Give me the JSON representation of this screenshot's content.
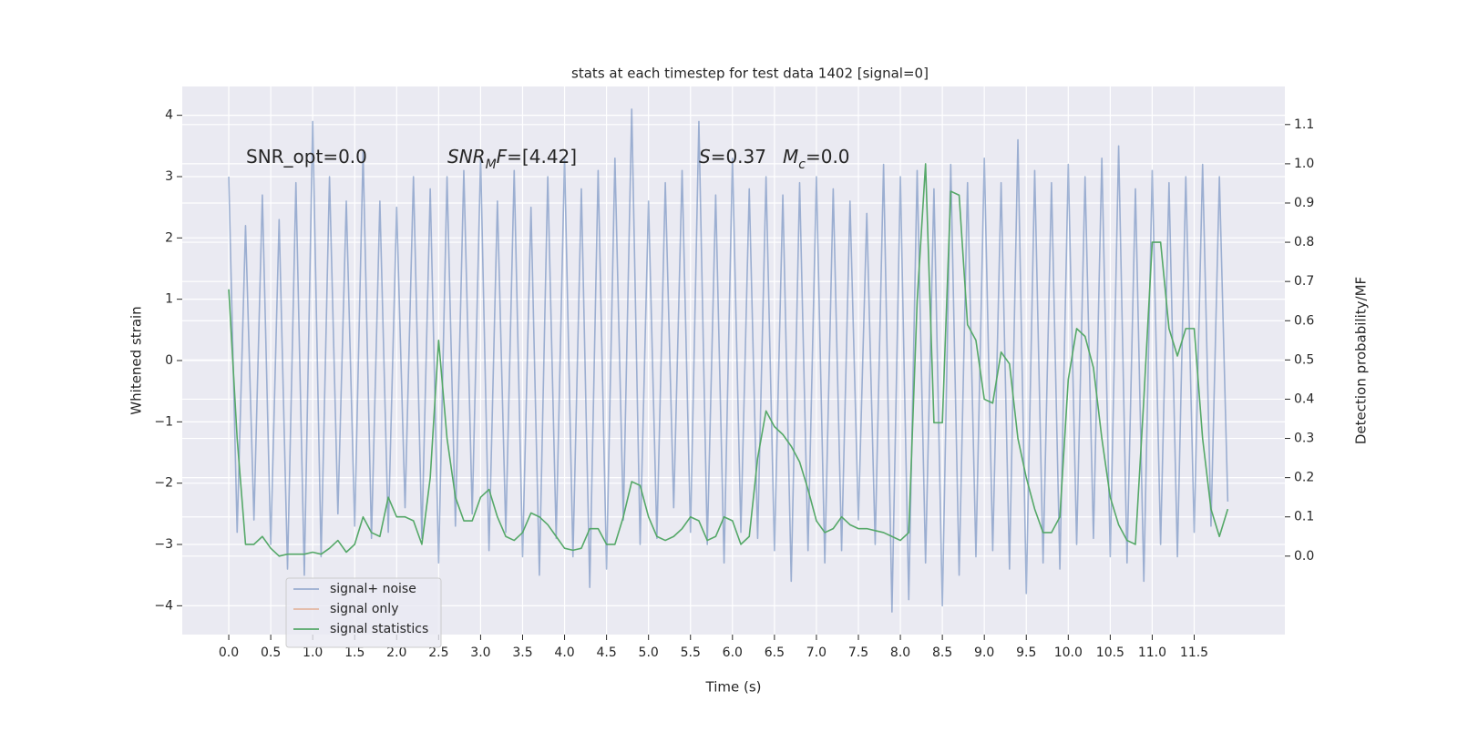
{
  "chart_data": {
    "type": "line",
    "title": "stats at each timestep for test data 1402 [signal=0]",
    "xlabel": "Time (s)",
    "ylabel": "Whitened strain",
    "y2label": "Detection probability/MF",
    "annotations": [
      [
        {
          "text": "SNR_opt=0.0",
          "style": "normal"
        }
      ],
      [
        {
          "text": "SNR",
          "style": "italic"
        },
        {
          "text": "M",
          "style": "sub"
        },
        {
          "text": "F",
          "style": "italic"
        },
        {
          "text": "=[4.42]",
          "style": "normal"
        }
      ],
      [
        {
          "text": "S",
          "style": "italic"
        },
        {
          "text": "=0.37",
          "style": "normal"
        }
      ],
      [
        {
          "text": "M",
          "style": "italic"
        },
        {
          "text": "c",
          "style": "sub"
        },
        {
          "text": "=0.0",
          "style": "normal"
        }
      ]
    ],
    "x": [
      0,
      0.1,
      0.2,
      0.3,
      0.4,
      0.5,
      0.6,
      0.7,
      0.8,
      0.9,
      1,
      1.1,
      1.2,
      1.3,
      1.4,
      1.5,
      1.6,
      1.7,
      1.8,
      1.9,
      2,
      2.1,
      2.2,
      2.3,
      2.4,
      2.5,
      2.6,
      2.7,
      2.8,
      2.9,
      3,
      3.1,
      3.2,
      3.3,
      3.4,
      3.5,
      3.6,
      3.7,
      3.8,
      3.9,
      4,
      4.1,
      4.2,
      4.3,
      4.4,
      4.5,
      4.6,
      4.7,
      4.8,
      4.9,
      5,
      5.1,
      5.2,
      5.3,
      5.4,
      5.5,
      5.6,
      5.7,
      5.8,
      5.9,
      6,
      6.1,
      6.2,
      6.3,
      6.4,
      6.5,
      6.6,
      6.7,
      6.8,
      6.9,
      7,
      7.1,
      7.2,
      7.3,
      7.4,
      7.5,
      7.6,
      7.7,
      7.8,
      7.9,
      8,
      8.1,
      8.2,
      8.3,
      8.4,
      8.5,
      8.6,
      8.7,
      8.8,
      8.9,
      9,
      9.1,
      9.2,
      9.3,
      9.4,
      9.5,
      9.6,
      9.7,
      9.8,
      9.9,
      10,
      10.1,
      10.2,
      10.3,
      10.4,
      10.5,
      10.6,
      10.7,
      10.8,
      10.9,
      11,
      11.1,
      11.2,
      11.3,
      11.4,
      11.5,
      11.6,
      11.7,
      11.8,
      11.9
    ],
    "series": [
      {
        "name": "signal+ noise",
        "color": "#4c72b0",
        "opacity": 0.5,
        "axis": "y",
        "values": [
          3.0,
          -2.8,
          2.2,
          -2.6,
          2.7,
          -3.0,
          2.3,
          -3.4,
          2.9,
          -3.5,
          3.9,
          -3.2,
          3.0,
          -2.5,
          2.6,
          -2.7,
          3.4,
          -2.9,
          2.6,
          -2.8,
          2.5,
          -2.4,
          3.0,
          -2.9,
          2.8,
          -3.3,
          3.0,
          -2.7,
          3.1,
          -2.5,
          3.3,
          -3.1,
          2.6,
          -2.8,
          3.1,
          -3.2,
          2.5,
          -3.5,
          3.0,
          -2.9,
          3.3,
          -3.2,
          2.8,
          -3.7,
          3.1,
          -3.4,
          3.3,
          -2.6,
          4.1,
          -3.0,
          2.6,
          -2.9,
          2.9,
          -2.4,
          3.1,
          -2.8,
          3.9,
          -3.0,
          2.7,
          -3.3,
          3.3,
          -2.8,
          2.8,
          -2.9,
          3.0,
          -3.1,
          2.7,
          -3.6,
          2.9,
          -3.1,
          3.0,
          -3.3,
          2.8,
          -3.1,
          2.6,
          -2.6,
          2.4,
          -3.0,
          3.2,
          -4.1,
          3.0,
          -3.9,
          3.1,
          -3.3,
          2.8,
          -4.0,
          3.2,
          -3.5,
          2.9,
          -3.2,
          3.3,
          -3.1,
          2.9,
          -3.4,
          3.6,
          -3.8,
          3.1,
          -3.3,
          2.9,
          -3.4,
          3.2,
          -3.0,
          3.0,
          -2.9,
          3.3,
          -3.2,
          3.5,
          -3.3,
          2.8,
          -3.6,
          3.1,
          -3.0,
          2.9,
          -3.2,
          3.0,
          -2.8,
          3.2,
          -2.7,
          3.0,
          -2.3
        ]
      },
      {
        "name": "signal only",
        "color": "#dd8452",
        "opacity": 0.5,
        "axis": "y"
      },
      {
        "name": "signal statistics",
        "color": "#55a868",
        "opacity": 1,
        "axis": "y2",
        "values": [
          0.68,
          0.3,
          0.03,
          0.03,
          0.05,
          0.02,
          0.0,
          0.005,
          0.005,
          0.005,
          0.01,
          0.005,
          0.02,
          0.04,
          0.01,
          0.03,
          0.1,
          0.06,
          0.05,
          0.15,
          0.1,
          0.1,
          0.09,
          0.03,
          0.2,
          0.55,
          0.3,
          0.15,
          0.09,
          0.09,
          0.15,
          0.17,
          0.1,
          0.05,
          0.04,
          0.06,
          0.11,
          0.1,
          0.08,
          0.05,
          0.02,
          0.015,
          0.02,
          0.07,
          0.07,
          0.03,
          0.03,
          0.1,
          0.19,
          0.18,
          0.1,
          0.05,
          0.04,
          0.05,
          0.07,
          0.1,
          0.09,
          0.04,
          0.05,
          0.1,
          0.09,
          0.03,
          0.05,
          0.25,
          0.37,
          0.33,
          0.31,
          0.28,
          0.24,
          0.17,
          0.09,
          0.06,
          0.07,
          0.1,
          0.08,
          0.07,
          0.07,
          0.065,
          0.06,
          0.05,
          0.04,
          0.06,
          0.65,
          1.0,
          0.34,
          0.34,
          0.93,
          0.92,
          0.59,
          0.55,
          0.4,
          0.39,
          0.52,
          0.49,
          0.3,
          0.2,
          0.12,
          0.06,
          0.06,
          0.1,
          0.45,
          0.58,
          0.56,
          0.48,
          0.3,
          0.15,
          0.08,
          0.04,
          0.03,
          0.4,
          0.8,
          0.8,
          0.58,
          0.51,
          0.58,
          0.58,
          0.3,
          0.12,
          0.05,
          0.12
        ]
      }
    ],
    "xlim": [
      -0.554,
      12.58
    ],
    "xticks": [
      {
        "value": 0,
        "label": "0.0"
      },
      0.5,
      {
        "value": 1,
        "label": "1.0"
      },
      1.5,
      {
        "value": 2,
        "label": "2.0"
      },
      2.5,
      {
        "value": 3,
        "label": "3.0"
      },
      3.5,
      {
        "value": 4,
        "label": "4.0"
      },
      4.5,
      {
        "value": 5,
        "label": "5.0"
      },
      5.5,
      {
        "value": 6,
        "label": "6.0"
      },
      6.5,
      {
        "value": 7,
        "label": "7.0"
      },
      7.5,
      {
        "value": 8,
        "label": "8.0"
      },
      8.5,
      {
        "value": 9,
        "label": "9.0"
      },
      9.5,
      {
        "value": 10,
        "label": "10.0"
      },
      10.5,
      {
        "value": 11,
        "label": "11.0"
      },
      11.5
    ],
    "ylim": [
      -4.47,
      4.47
    ],
    "yticks": [
      {
        "value": -4,
        "label": "−4"
      },
      {
        "value": -3,
        "label": "−3"
      },
      {
        "value": -2,
        "label": "−2"
      },
      {
        "value": -1,
        "label": "−1"
      },
      0,
      1,
      2,
      3,
      4
    ],
    "y2lim": [
      -0.2,
      1.197
    ],
    "y2ticks": [
      {
        "value": 0,
        "label": "0.0"
      },
      0.1,
      0.2,
      0.3,
      0.4,
      0.5,
      0.6,
      0.7,
      0.8,
      0.9,
      {
        "value": 1,
        "label": "1.0"
      },
      1.1
    ],
    "grid": true,
    "legend": "lower left"
  }
}
